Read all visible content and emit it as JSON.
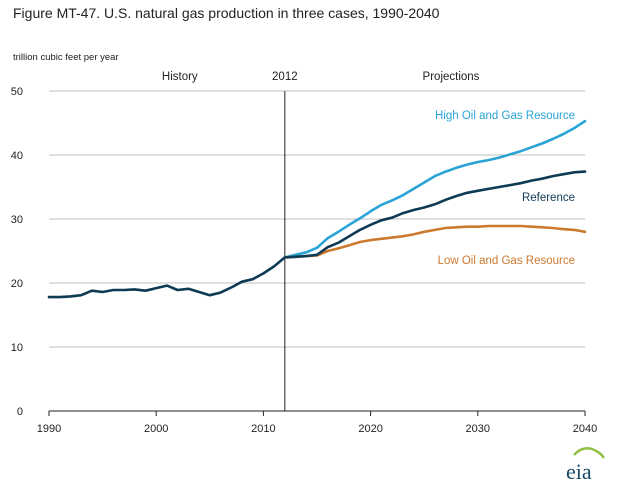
{
  "title": "Figure MT-47. U.S. natural gas production in three cases, 1990-2040",
  "logo_text": "eia",
  "colors": {
    "high": "#2aa3d6",
    "reference": "#0e3a55",
    "low": "#cc7a2e",
    "logo": "#1a4a66"
  },
  "chart_data": {
    "type": "line",
    "title": "Figure MT-47. U.S. natural gas production in three cases, 1990-2040",
    "xlabel": "",
    "ylabel": "trillion cubic feet per year",
    "xlim": [
      1990,
      2040
    ],
    "ylim": [
      0,
      50
    ],
    "x_ticks": [
      "1990",
      "2000",
      "2010",
      "2020",
      "2030",
      "2040"
    ],
    "y_ticks": [
      "0",
      "10",
      "20",
      "30",
      "40",
      "50"
    ],
    "grid": "horizontal",
    "marker": {
      "year": 2012,
      "label": "2012",
      "left_label": "History",
      "right_label": "Projections"
    },
    "series": [
      {
        "name": "Reference",
        "color": "#0e3a55",
        "x": [
          1990,
          1991,
          1992,
          1993,
          1994,
          1995,
          1996,
          1997,
          1998,
          1999,
          2000,
          2001,
          2002,
          2003,
          2004,
          2005,
          2006,
          2007,
          2008,
          2009,
          2010,
          2011,
          2012,
          2013,
          2014,
          2015,
          2016,
          2017,
          2018,
          2019,
          2020,
          2021,
          2022,
          2023,
          2024,
          2025,
          2026,
          2027,
          2028,
          2029,
          2030,
          2031,
          2032,
          2033,
          2034,
          2035,
          2036,
          2037,
          2038,
          2039,
          2040
        ],
        "values": [
          17.8,
          17.8,
          17.9,
          18.1,
          18.8,
          18.6,
          18.9,
          18.9,
          19.0,
          18.8,
          19.2,
          19.6,
          18.9,
          19.1,
          18.6,
          18.1,
          18.5,
          19.3,
          20.2,
          20.6,
          21.5,
          22.6,
          24.0,
          24.1,
          24.2,
          24.4,
          25.6,
          26.3,
          27.3,
          28.3,
          29.1,
          29.8,
          30.2,
          30.9,
          31.4,
          31.8,
          32.3,
          33.0,
          33.6,
          34.1,
          34.4,
          34.7,
          35.0,
          35.3,
          35.6,
          36.0,
          36.3,
          36.7,
          37.0,
          37.3,
          37.4
        ]
      },
      {
        "name": "High Oil and Gas Resource",
        "color": "#2aa3d6",
        "x": [
          2012,
          2013,
          2014,
          2015,
          2016,
          2017,
          2018,
          2019,
          2020,
          2021,
          2022,
          2023,
          2024,
          2025,
          2026,
          2027,
          2028,
          2029,
          2030,
          2031,
          2032,
          2033,
          2034,
          2035,
          2036,
          2037,
          2038,
          2039,
          2040
        ],
        "values": [
          24.0,
          24.4,
          24.8,
          25.5,
          27.0,
          28.0,
          29.1,
          30.1,
          31.2,
          32.2,
          32.9,
          33.7,
          34.7,
          35.7,
          36.7,
          37.4,
          38.0,
          38.5,
          38.9,
          39.2,
          39.6,
          40.1,
          40.6,
          41.2,
          41.8,
          42.5,
          43.3,
          44.2,
          45.3
        ]
      },
      {
        "name": "Low Oil and Gas Resource",
        "color": "#cc7a2e",
        "x": [
          2012,
          2013,
          2014,
          2015,
          2016,
          2017,
          2018,
          2019,
          2020,
          2021,
          2022,
          2023,
          2024,
          2025,
          2026,
          2027,
          2028,
          2029,
          2030,
          2031,
          2032,
          2033,
          2034,
          2035,
          2036,
          2037,
          2038,
          2039,
          2040
        ],
        "values": [
          24.0,
          24.1,
          24.2,
          24.3,
          25.0,
          25.4,
          25.9,
          26.4,
          26.7,
          26.9,
          27.1,
          27.3,
          27.6,
          28.0,
          28.3,
          28.6,
          28.7,
          28.8,
          28.8,
          28.9,
          28.9,
          28.9,
          28.9,
          28.8,
          28.7,
          28.6,
          28.4,
          28.3,
          28.0
        ]
      }
    ]
  }
}
